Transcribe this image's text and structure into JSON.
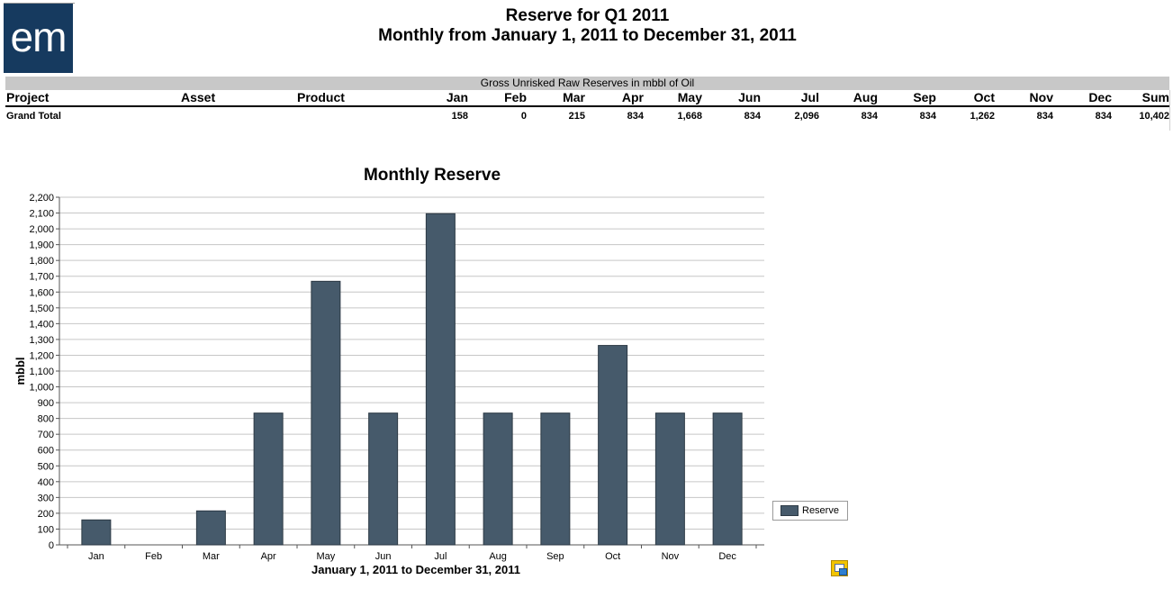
{
  "logo": {
    "text": "em"
  },
  "report": {
    "title": "Reserve for Q1 2011",
    "subtitle": "Monthly from January 1, 2011 to December 31, 2011"
  },
  "table": {
    "band_label": "Gross Unrisked Raw Reserves in mbbl of Oil",
    "headers": [
      "Project",
      "Asset",
      "Product",
      "Jan",
      "Feb",
      "Mar",
      "Apr",
      "May",
      "Jun",
      "Jul",
      "Aug",
      "Sep",
      "Oct",
      "Nov",
      "Dec",
      "Sum"
    ],
    "grand_total": {
      "label": "Grand Total",
      "values": [
        "158",
        "0",
        "215",
        "834",
        "1,668",
        "834",
        "2,096",
        "834",
        "834",
        "1,262",
        "834",
        "834",
        "10,402"
      ]
    }
  },
  "chart_data": {
    "type": "bar",
    "title": "Monthly Reserve",
    "xlabel": "January 1, 2011 to December 31, 2011",
    "ylabel": "mbbl",
    "categories": [
      "Jan",
      "Feb",
      "Mar",
      "Apr",
      "May",
      "Jun",
      "Jul",
      "Aug",
      "Sep",
      "Oct",
      "Nov",
      "Dec"
    ],
    "series": [
      {
        "name": "Reserve",
        "values": [
          158,
          0,
          215,
          834,
          1668,
          834,
          2096,
          834,
          834,
          1262,
          834,
          834
        ]
      }
    ],
    "ylim": [
      0,
      2200
    ],
    "ytick_step": 100,
    "ytick_labels": [
      "0",
      "100",
      "200",
      "300",
      "400",
      "500",
      "600",
      "700",
      "800",
      "900",
      "1,000",
      "1,100",
      "1,200",
      "1,300",
      "1,400",
      "1,500",
      "1,600",
      "1,700",
      "1,800",
      "1,900",
      "2,000",
      "2,100",
      "2,200"
    ],
    "grid": true,
    "legend": "right",
    "bar_color": "#465a6b"
  }
}
